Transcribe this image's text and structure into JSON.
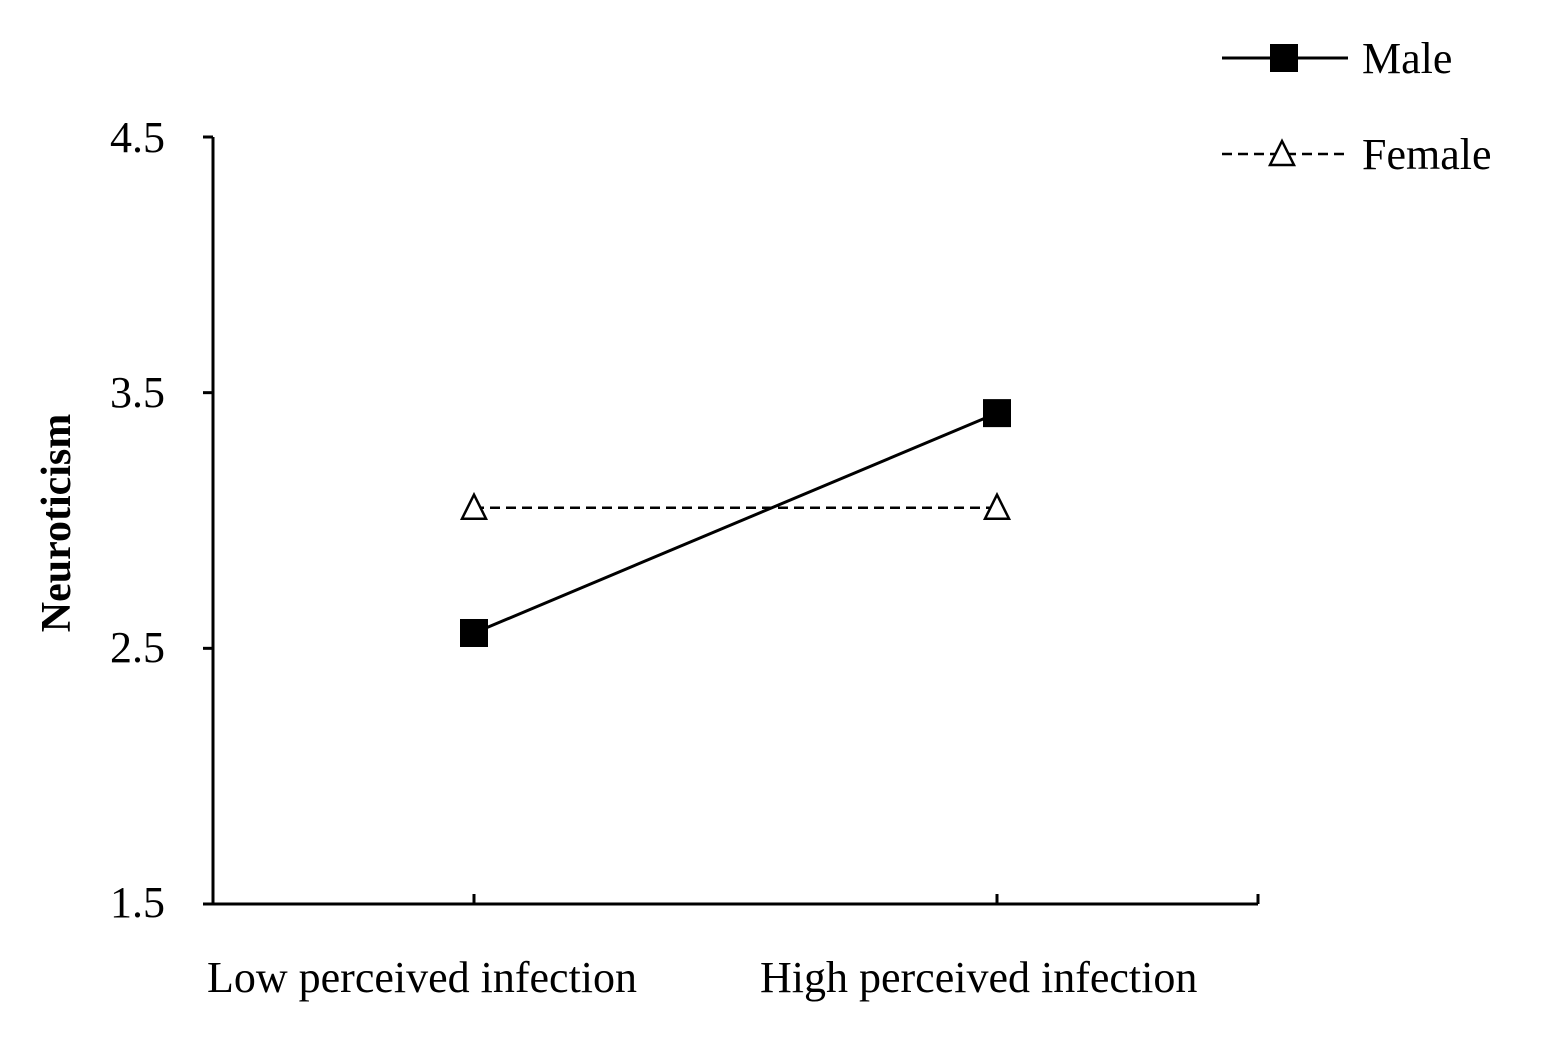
{
  "chart_data": {
    "type": "line",
    "title": "",
    "xlabel": "",
    "ylabel": "Neuroticism",
    "categories": [
      "Low perceived infection",
      "High perceived infection"
    ],
    "yticks": [
      "1.5",
      "2.5",
      "3.5",
      "4.5"
    ],
    "ylim": [
      1.5,
      4.5
    ],
    "grid": false,
    "legend_position": "top-right",
    "series": [
      {
        "name": "Male",
        "values": [
          2.56,
          3.42
        ],
        "line_style": "solid",
        "marker": "filled-square",
        "color": "#000000"
      },
      {
        "name": "Female",
        "values": [
          3.05,
          3.05
        ],
        "line_style": "dashed",
        "marker": "open-triangle",
        "color": "#000000"
      }
    ]
  }
}
